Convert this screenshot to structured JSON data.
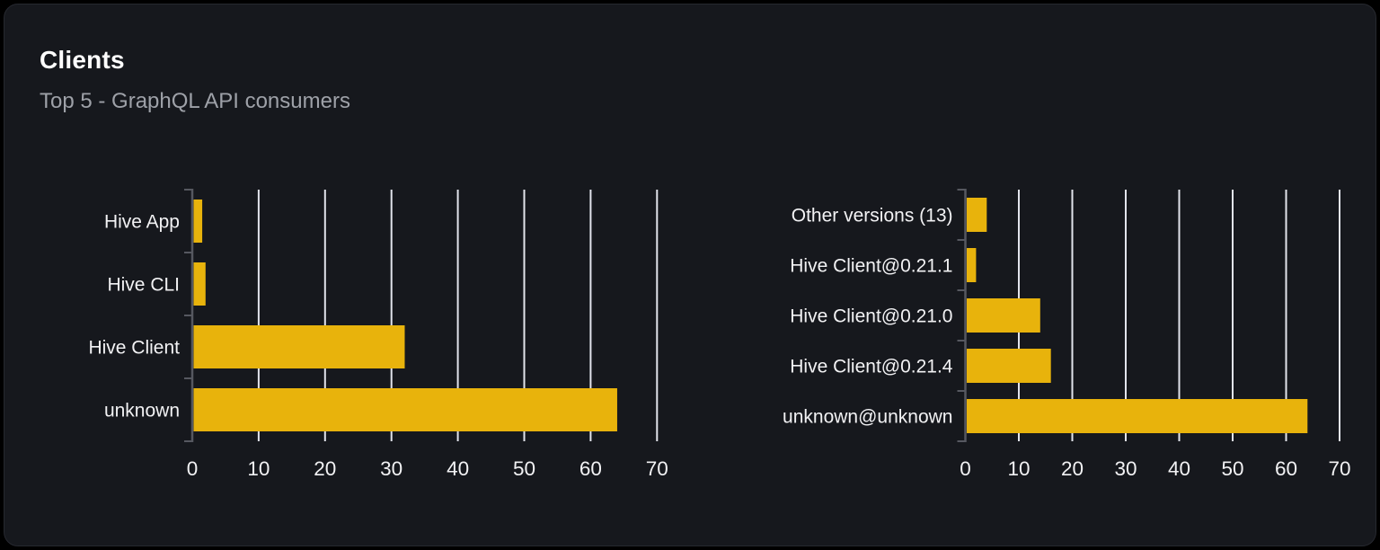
{
  "card": {
    "title": "Clients",
    "subtitle": "Top 5 - GraphQL API consumers"
  },
  "colors": {
    "bar": "#e8b30c",
    "gridline": "#e2e4ec",
    "axis": "#565860",
    "label_text": "#f2f2f4",
    "tick_text": "#f2f2f4",
    "title_text": "#ffffff",
    "subtitle_text": "#9ea1a8",
    "card_bg": "#16181d",
    "card_border": "#26282f",
    "page_bg": "#000000"
  },
  "chart_data": [
    {
      "type": "bar",
      "orientation": "horizontal",
      "name": "clients",
      "categories": [
        "Hive App",
        "Hive CLI",
        "Hive Client",
        "unknown"
      ],
      "values": [
        1.5,
        2,
        32,
        64
      ],
      "xlim": [
        0,
        70
      ],
      "xticks": [
        0,
        10,
        20,
        30,
        40,
        50,
        60,
        70
      ],
      "grid": true,
      "legend": false
    },
    {
      "type": "bar",
      "orientation": "horizontal",
      "name": "client-versions",
      "categories": [
        "Other versions (13)",
        "Hive Client@0.21.1",
        "Hive Client@0.21.0",
        "Hive Client@0.21.4",
        "unknown@unknown"
      ],
      "values": [
        4,
        2,
        14,
        16,
        64
      ],
      "xlim": [
        0,
        70
      ],
      "xticks": [
        0,
        10,
        20,
        30,
        40,
        50,
        60,
        70
      ],
      "grid": true,
      "legend": false
    }
  ]
}
